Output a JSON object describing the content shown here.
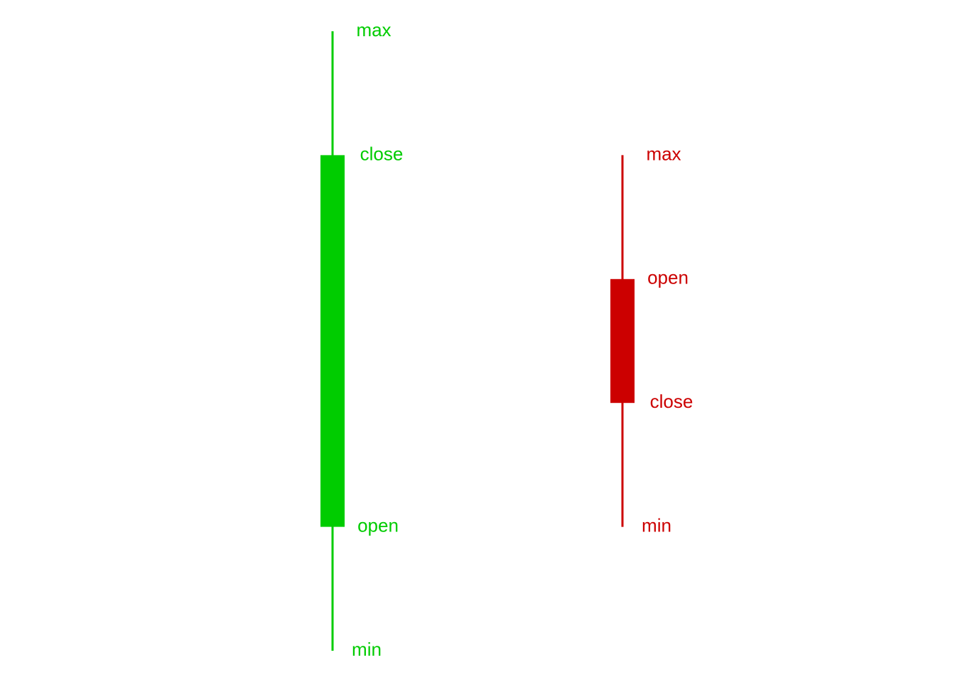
{
  "chart_data": {
    "type": "candlestick",
    "title": "",
    "xlabel": "",
    "ylabel": "",
    "grid": false,
    "axes_visible": false,
    "ylim": [
      0,
      10
    ],
    "candles": [
      {
        "direction": "up",
        "color": "#00cc00",
        "open": 1,
        "close": 7,
        "max": 9,
        "min": -1,
        "labels": {
          "max": "max",
          "close": "close",
          "open": "open",
          "min": "min"
        }
      },
      {
        "direction": "down",
        "color": "#cc0000",
        "open": 5,
        "close": 3,
        "max": 7,
        "min": 1,
        "labels": {
          "max": "max",
          "open": "open",
          "close": "close",
          "min": "min"
        }
      }
    ]
  }
}
